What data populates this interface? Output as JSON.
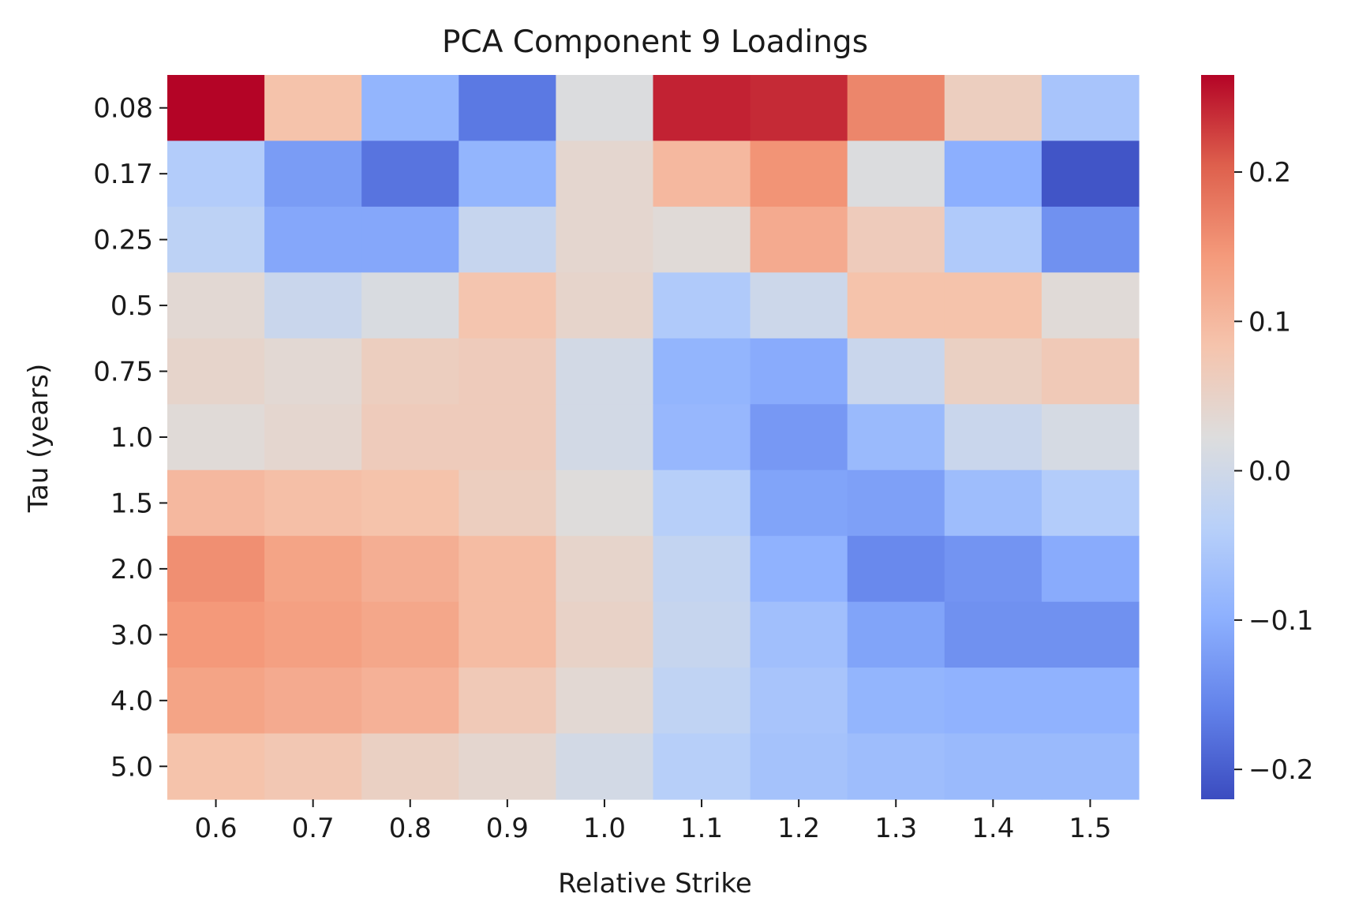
{
  "chart_data": {
    "type": "heatmap",
    "title": "PCA Component 9 Loadings",
    "xlabel": "Relative Strike",
    "ylabel": "Tau (years)",
    "x_categories": [
      "0.6",
      "0.7",
      "0.8",
      "0.9",
      "1.0",
      "1.1",
      "1.2",
      "1.3",
      "1.4",
      "1.5"
    ],
    "y_categories": [
      "0.08",
      "0.17",
      "0.25",
      "0.5",
      "0.75",
      "1.0",
      "1.5",
      "2.0",
      "3.0",
      "4.0",
      "5.0"
    ],
    "values": [
      [
        0.265,
        0.085,
        -0.09,
        -0.17,
        0.02,
        0.245,
        0.24,
        0.165,
        0.06,
        -0.06
      ],
      [
        -0.045,
        -0.125,
        -0.175,
        -0.09,
        0.04,
        0.1,
        0.15,
        0.02,
        -0.1,
        -0.21
      ],
      [
        -0.03,
        -0.11,
        -0.11,
        -0.015,
        0.04,
        0.03,
        0.12,
        0.065,
        -0.05,
        -0.14
      ],
      [
        0.035,
        -0.01,
        0.015,
        0.08,
        0.045,
        -0.05,
        -0.005,
        0.085,
        0.085,
        0.03
      ],
      [
        0.045,
        0.035,
        0.06,
        0.065,
        0.005,
        -0.09,
        -0.105,
        -0.01,
        0.055,
        0.07
      ],
      [
        0.03,
        0.04,
        0.065,
        0.065,
        0.005,
        -0.085,
        -0.13,
        -0.08,
        -0.01,
        0.01
      ],
      [
        0.1,
        0.09,
        0.085,
        0.06,
        0.025,
        -0.04,
        -0.115,
        -0.12,
        -0.075,
        -0.045
      ],
      [
        0.155,
        0.13,
        0.115,
        0.095,
        0.045,
        -0.02,
        -0.095,
        -0.15,
        -0.135,
        -0.105
      ],
      [
        0.145,
        0.135,
        0.125,
        0.095,
        0.05,
        -0.015,
        -0.07,
        -0.115,
        -0.14,
        -0.14
      ],
      [
        0.13,
        0.12,
        0.11,
        0.07,
        0.035,
        -0.025,
        -0.06,
        -0.09,
        -0.095,
        -0.095
      ],
      [
        0.085,
        0.075,
        0.055,
        0.04,
        0.005,
        -0.04,
        -0.065,
        -0.075,
        -0.08,
        -0.08
      ]
    ],
    "vmin": -0.22,
    "vmax": 0.265,
    "colormap": "coolwarm",
    "colorbar_ticks": [
      0.2,
      0.1,
      0.0,
      -0.1,
      -0.2
    ],
    "colorbar_tick_labels": [
      "0.2",
      "0.1",
      "0.0",
      "−0.1",
      "−0.2"
    ],
    "grid": false,
    "legend": "colorbar-right"
  }
}
